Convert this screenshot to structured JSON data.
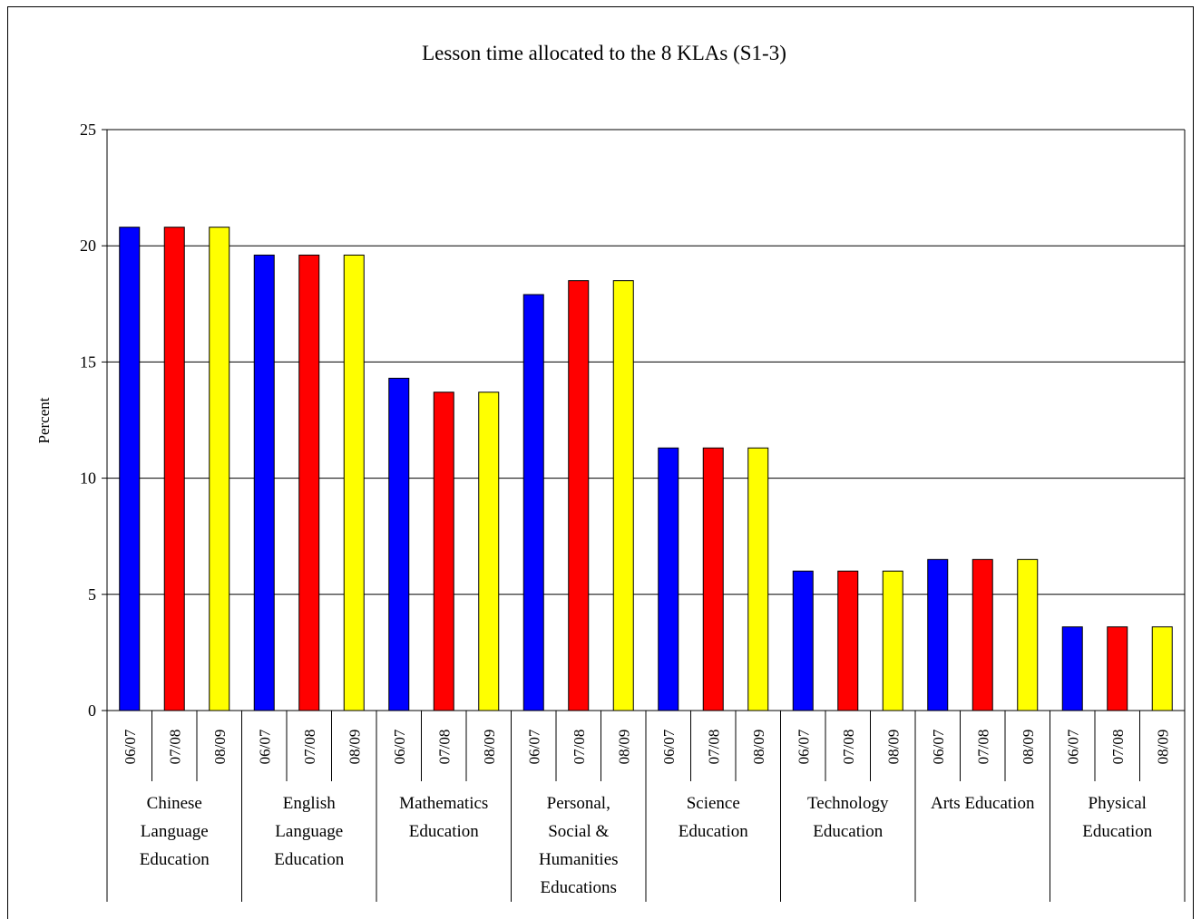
{
  "chart_data": {
    "type": "bar",
    "title": "Lesson time allocated to the 8 KLAs (S1-3)",
    "xlabel": "",
    "ylabel": "Percent",
    "ylim": [
      0,
      25
    ],
    "yticks": [
      "0",
      "5",
      "10",
      "15",
      "20",
      "25"
    ],
    "grid": true,
    "legend": "none",
    "groups": [
      {
        "label_lines": [
          "Chinese",
          "Language",
          "Education"
        ],
        "years": [
          "06/07",
          "07/08",
          "08/09"
        ],
        "values": [
          20.8,
          20.8,
          20.8
        ]
      },
      {
        "label_lines": [
          "English",
          "Language",
          "Education"
        ],
        "years": [
          "06/07",
          "07/08",
          "08/09"
        ],
        "values": [
          19.6,
          19.6,
          19.6
        ]
      },
      {
        "label_lines": [
          "Mathematics",
          "Education"
        ],
        "years": [
          "06/07",
          "07/08",
          "08/09"
        ],
        "values": [
          14.3,
          13.7,
          13.7
        ]
      },
      {
        "label_lines": [
          "Personal,",
          "Social &",
          "Humanities",
          "Educations"
        ],
        "years": [
          "06/07",
          "07/08",
          "08/09"
        ],
        "values": [
          17.9,
          18.5,
          18.5
        ]
      },
      {
        "label_lines": [
          "Science",
          "Education"
        ],
        "years": [
          "06/07",
          "07/08",
          "08/09"
        ],
        "values": [
          11.3,
          11.3,
          11.3
        ]
      },
      {
        "label_lines": [
          "Technology",
          "Education"
        ],
        "years": [
          "06/07",
          "07/08",
          "08/09"
        ],
        "values": [
          6.0,
          6.0,
          6.0
        ]
      },
      {
        "label_lines": [
          "Arts Education"
        ],
        "years": [
          "06/07",
          "07/08",
          "08/09"
        ],
        "values": [
          6.5,
          6.5,
          6.5
        ]
      },
      {
        "label_lines": [
          "Physical",
          "Education"
        ],
        "years": [
          "06/07",
          "07/08",
          "08/09"
        ],
        "values": [
          3.6,
          3.6,
          3.6
        ]
      }
    ],
    "series_colors": [
      "#0000FF",
      "#FF0000",
      "#FFFF00"
    ]
  }
}
